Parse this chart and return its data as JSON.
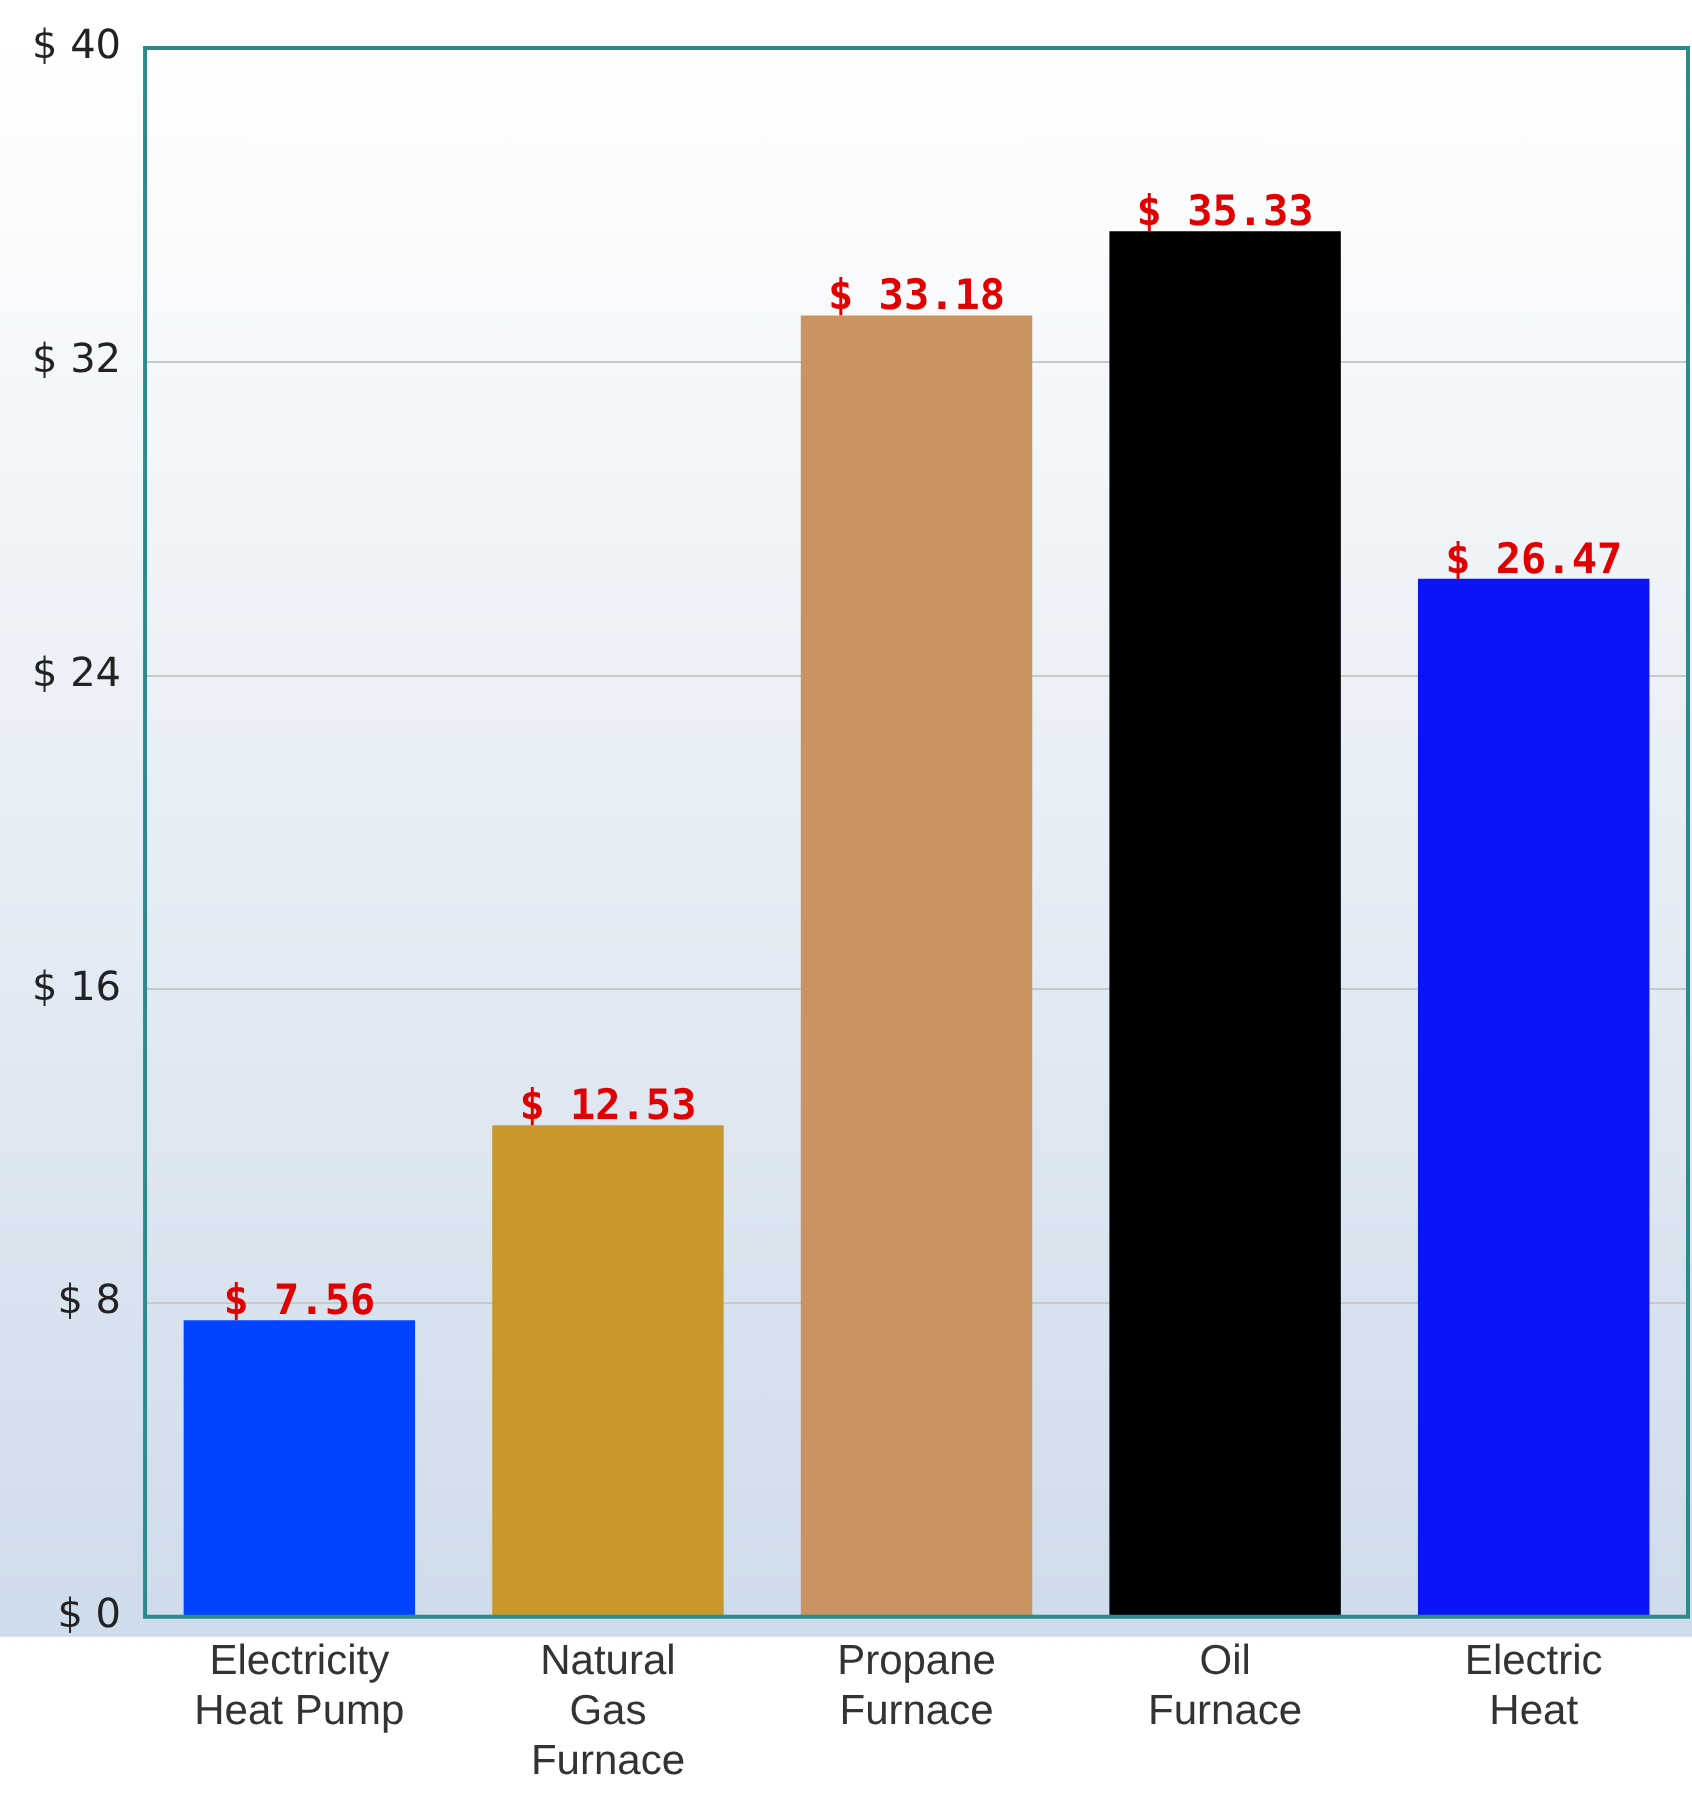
{
  "chart_data": {
    "type": "bar",
    "categories": [
      "Electricity\nHeat Pump",
      "Natural\nGas\nFurnace",
      "Propane\nFurnace",
      "Oil\nFurnace",
      "Electric\nHeat"
    ],
    "values": [
      7.56,
      12.53,
      33.18,
      35.33,
      26.47
    ],
    "colors": [
      "#0044ff",
      "#c8982f",
      "#c99462",
      "#000000",
      "#0a14f5"
    ],
    "value_labels": [
      "$ 7.56",
      "$ 12.53",
      "$ 33.18",
      "$ 35.33",
      "$ 26.47"
    ],
    "ylim": [
      0,
      40
    ],
    "yticks": [
      {
        "value": 0,
        "label": "$ 0"
      },
      {
        "value": 8,
        "label": "$ 8"
      },
      {
        "value": 16,
        "label": "$ 16"
      },
      {
        "value": 24,
        "label": "$ 24"
      },
      {
        "value": 32,
        "label": "$ 32"
      },
      {
        "value": 40,
        "label": "$ 40"
      }
    ],
    "grid": "y",
    "legend": false
  }
}
